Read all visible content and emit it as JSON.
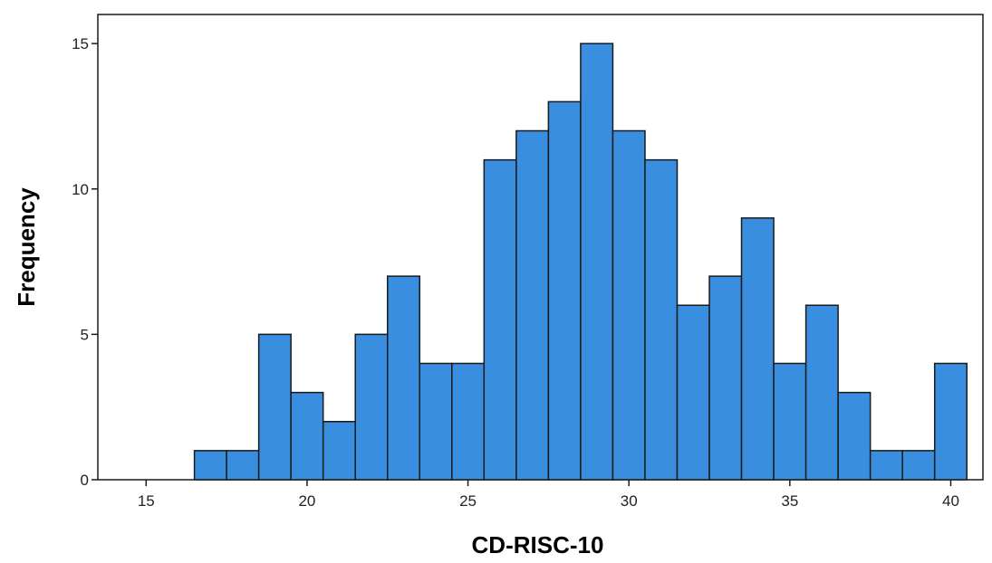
{
  "chart_data": {
    "type": "bar",
    "title": "",
    "xlabel": "CD-RISC-10",
    "ylabel": "Frequency",
    "bin_width": 1,
    "bin_centers": [
      17,
      18,
      19,
      20,
      21,
      22,
      23,
      24,
      25,
      26,
      27,
      28,
      29,
      30,
      31,
      32,
      33,
      34,
      35,
      36,
      37,
      38,
      39,
      40
    ],
    "values": [
      1,
      1,
      5,
      3,
      2,
      5,
      7,
      4,
      4,
      11,
      12,
      13,
      15,
      12,
      11,
      6,
      7,
      9,
      4,
      6,
      3,
      1,
      1,
      4
    ],
    "xlim": [
      13.5,
      41
    ],
    "ylim": [
      0,
      16
    ],
    "x_ticks": [
      15,
      20,
      25,
      30,
      35,
      40
    ],
    "y_ticks": [
      0,
      5,
      10,
      15
    ],
    "grid": false,
    "bar_color": "#3a8ee0",
    "edge_color": "#1a1a1a"
  }
}
